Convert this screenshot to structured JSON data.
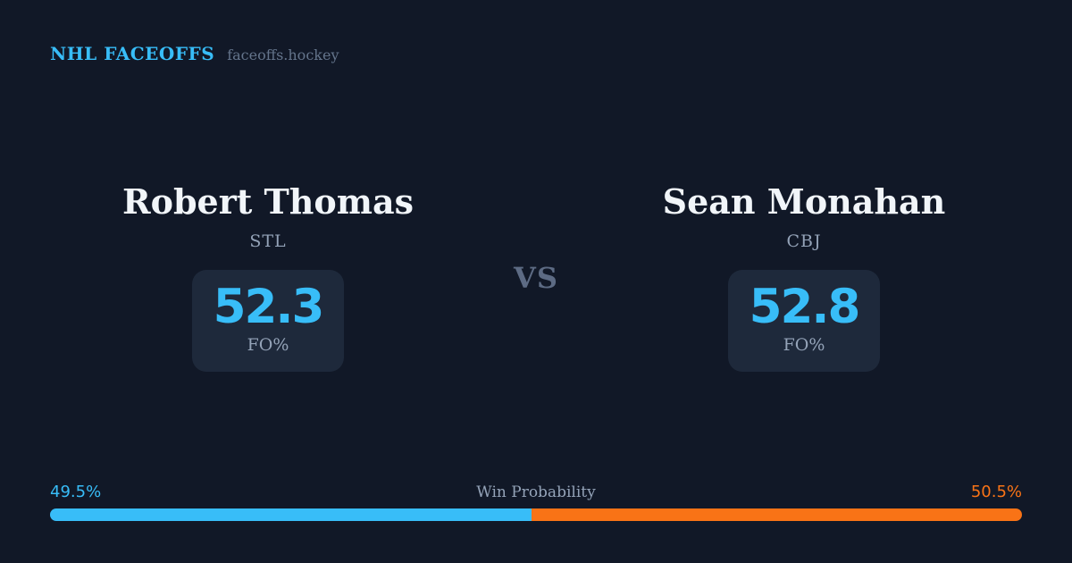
{
  "header": {
    "title": "NHL FACEOFFS",
    "site": "faceoffs.hockey"
  },
  "players": [
    {
      "name": "Robert Thomas",
      "team": "STL",
      "stat_value": "52.3",
      "stat_label": "FO%"
    },
    {
      "name": "Sean Monahan",
      "team": "CBJ",
      "stat_value": "52.8",
      "stat_label": "FO%"
    }
  ],
  "vs_label": "VS",
  "win_probability": {
    "label": "Win Probability",
    "left_pct_label": "49.5%",
    "right_pct_label": "50.5%",
    "left_value": 49.5,
    "right_value": 50.5
  },
  "colors": {
    "background": "#111827",
    "card_background": "#1e293b",
    "accent_blue": "#38bdf8",
    "accent_orange": "#f97316",
    "text_primary": "#f1f5f9",
    "text_muted": "#94a3b8",
    "text_dim": "#64748b",
    "vs_text": "#5d6b84"
  },
  "chart_data": {
    "type": "bar",
    "title": "Win Probability",
    "orientation": "horizontal",
    "stacked": true,
    "categories": [
      "Win Probability"
    ],
    "series": [
      {
        "name": "Robert Thomas (STL)",
        "values": [
          49.5
        ],
        "color": "#38bdf8"
      },
      {
        "name": "Sean Monahan (CBJ)",
        "values": [
          50.5
        ],
        "color": "#f97316"
      }
    ],
    "range": [
      0,
      100
    ],
    "related_stats": {
      "metric": "FO%",
      "values": [
        {
          "player": "Robert Thomas",
          "team": "STL",
          "fo_pct": 52.3
        },
        {
          "player": "Sean Monahan",
          "team": "CBJ",
          "fo_pct": 52.8
        }
      ]
    }
  }
}
